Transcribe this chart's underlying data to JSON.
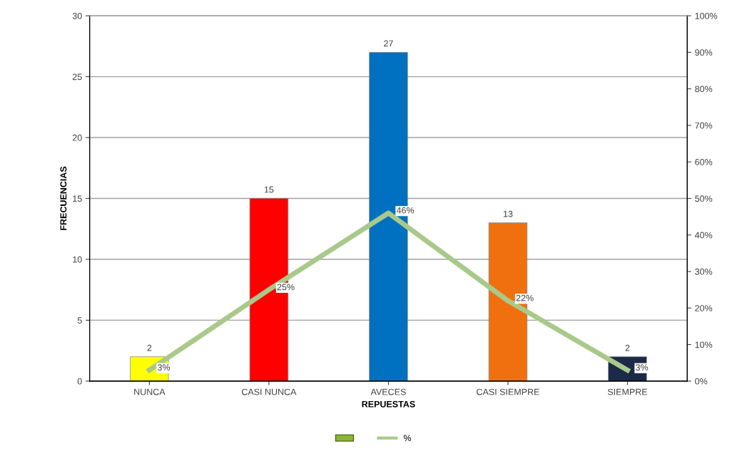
{
  "chart_data": {
    "type": "bar",
    "xlabel": "REPUESTAS",
    "ylabel": "FRECUENCIAS",
    "categories": [
      "NUNCA",
      "CASI NUNCA",
      "AVECES",
      "CASI SIEMPRE",
      "SIEMPRE"
    ],
    "series": [
      {
        "colors": [
          "#ffff00",
          "#ff0000",
          "#0070c0",
          "#f07010",
          "#1a2a48"
        ],
        "values": [
          2,
          15,
          27,
          13,
          2
        ],
        "value_labels": [
          "2",
          "15",
          "27",
          "13",
          "2"
        ]
      },
      {
        "type": "line",
        "name": "%",
        "axis": "y2",
        "color": "#a9c98a",
        "values": [
          3,
          25,
          46,
          22,
          3
        ],
        "value_labels": [
          "3%",
          "25%",
          "46%",
          "22%",
          "3%"
        ]
      }
    ],
    "ylim": [
      0,
      30
    ],
    "yticks": [
      0,
      5,
      10,
      15,
      20,
      25,
      30
    ],
    "y2lim": [
      0,
      100
    ],
    "y2ticks": [
      {
        "value": 0,
        "label": "0%"
      },
      {
        "value": 10,
        "label": "10%"
      },
      {
        "value": 20,
        "label": "20%"
      },
      {
        "value": 30,
        "label": "30%"
      },
      {
        "value": 40,
        "label": "40%"
      },
      {
        "value": 50,
        "label": "50%"
      },
      {
        "value": 60,
        "label": "60%"
      },
      {
        "value": 70,
        "label": "70%"
      },
      {
        "value": 80,
        "label": "80%"
      },
      {
        "value": 90,
        "label": "90%"
      },
      {
        "value": 100,
        "label": "100%"
      }
    ],
    "grid": "y",
    "legend": "bottom",
    "marker": "none"
  }
}
